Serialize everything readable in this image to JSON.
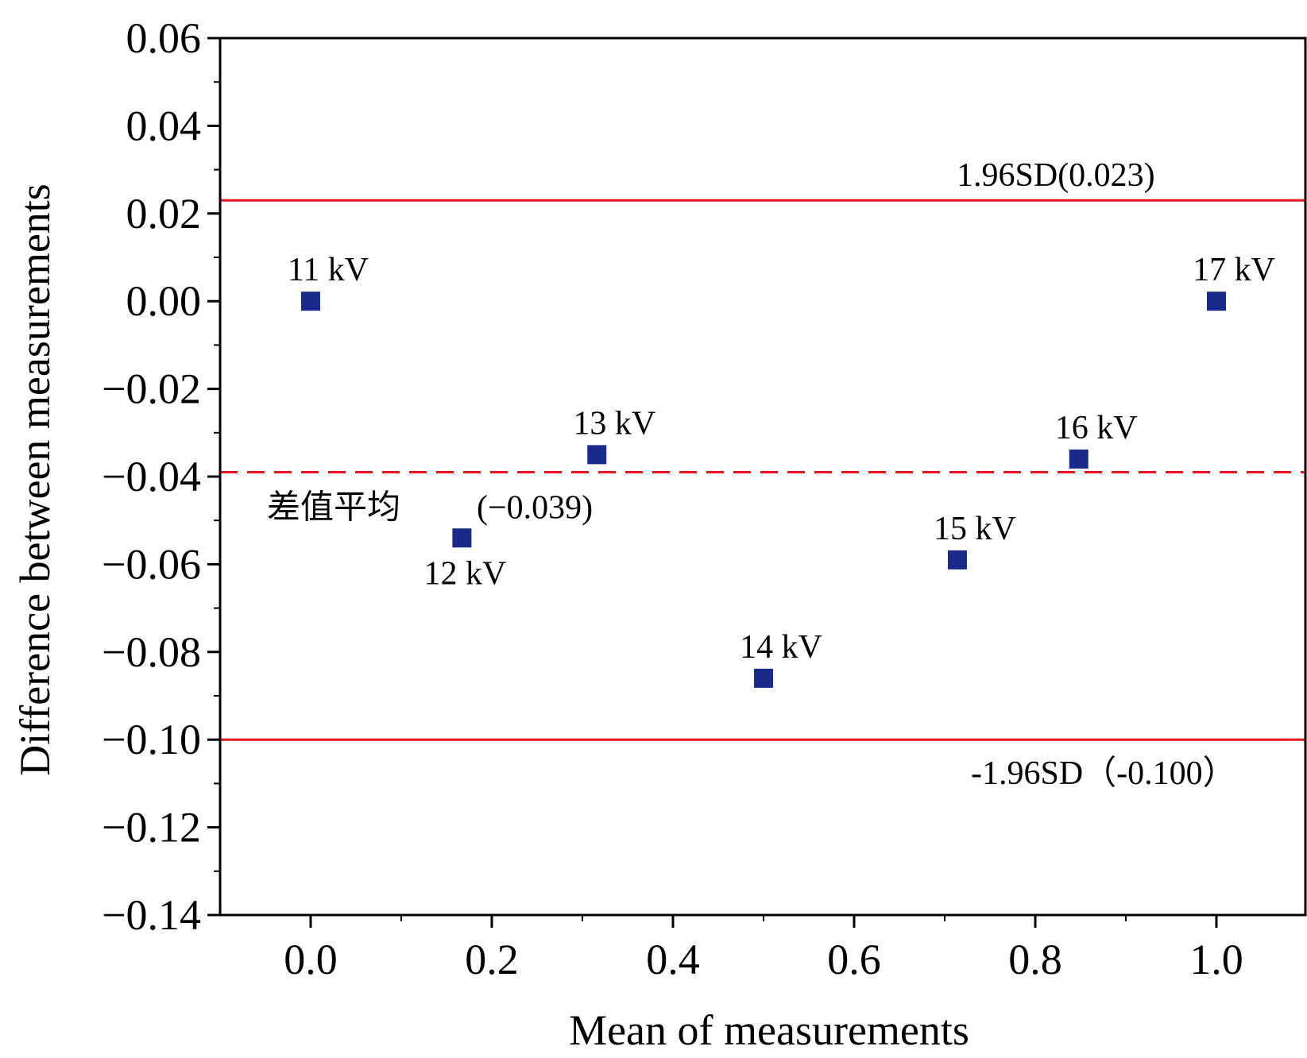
{
  "chart_data": {
    "type": "scatter",
    "title": "",
    "xlabel": "Mean of measurements",
    "ylabel": "Difference between measurements",
    "xlim": [
      -0.1,
      1.1
    ],
    "ylim": [
      -0.14,
      0.06
    ],
    "xticks": [
      {
        "value": 0.0,
        "label": "0.0"
      },
      {
        "value": 0.2,
        "label": "0.2"
      },
      {
        "value": 0.4,
        "label": "0.4"
      },
      {
        "value": 0.6,
        "label": "0.6"
      },
      {
        "value": 0.8,
        "label": "0.8"
      },
      {
        "value": 1.0,
        "label": "1.0"
      }
    ],
    "yticks": [
      {
        "value": 0.06,
        "label": "0.06"
      },
      {
        "value": 0.04,
        "label": "0.04"
      },
      {
        "value": 0.02,
        "label": "0.02"
      },
      {
        "value": 0.0,
        "label": "0.00"
      },
      {
        "value": -0.02,
        "label": "−0.02"
      },
      {
        "value": -0.04,
        "label": "−0.04"
      },
      {
        "value": -0.06,
        "label": "−0.06"
      },
      {
        "value": -0.08,
        "label": "−0.08"
      },
      {
        "value": -0.1,
        "label": "−0.10"
      },
      {
        "value": -0.12,
        "label": "−0.12"
      },
      {
        "value": -0.14,
        "label": "−0.14"
      }
    ],
    "points": [
      {
        "x": 0.0,
        "y": 0.0,
        "label": "11 kV",
        "label_pos": "above-right"
      },
      {
        "x": 0.167,
        "y": -0.054,
        "label": "12 kV",
        "label_pos": "below"
      },
      {
        "x": 0.316,
        "y": -0.035,
        "label": "13 kV",
        "label_pos": "above-right"
      },
      {
        "x": 0.5,
        "y": -0.086,
        "label": "14 kV",
        "label_pos": "above-right"
      },
      {
        "x": 0.714,
        "y": -0.059,
        "label": "15 kV",
        "label_pos": "above-right"
      },
      {
        "x": 0.848,
        "y": -0.036,
        "label": "16 kV",
        "label_pos": "above-right"
      },
      {
        "x": 1.0,
        "y": 0.0,
        "label": "17 kV",
        "label_pos": "above-right"
      }
    ],
    "reference_lines": [
      {
        "y": 0.023,
        "style": "solid",
        "label": "1.96SD(0.023)"
      },
      {
        "y": -0.039,
        "style": "dashed",
        "label": "差值平均",
        "label2": "(−0.039)"
      },
      {
        "y": -0.1,
        "style": "solid",
        "label": "-1.96SD（-0.100）"
      }
    ],
    "marker_color": "#1a2a8a",
    "line_color": "#e8141e",
    "grid": false,
    "legend": "none"
  }
}
